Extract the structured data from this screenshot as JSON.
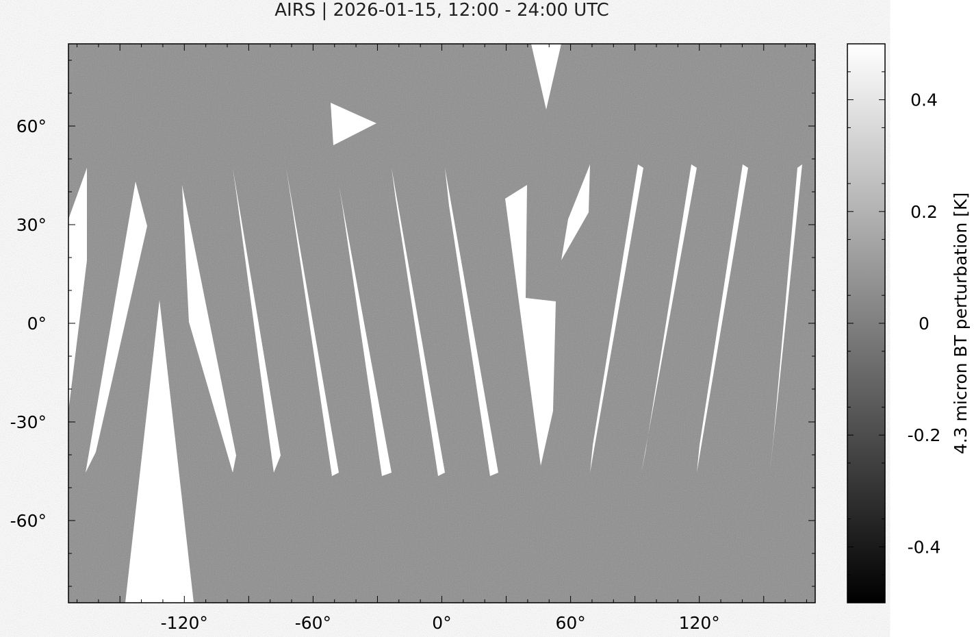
{
  "title": "AIRS | 2026-01-15, 12:00 - 24:00 UTC",
  "map": {
    "x_range": [
      -174,
      174
    ],
    "y_range": [
      -85,
      85
    ],
    "x_ticks": [
      {
        "v": -120,
        "label": "-120°"
      },
      {
        "v": -60,
        "label": "-60°"
      },
      {
        "v": 0,
        "label": "0°"
      },
      {
        "v": 60,
        "label": "60°"
      },
      {
        "v": 120,
        "label": "120°"
      }
    ],
    "y_ticks": [
      {
        "v": 60,
        "label": "60°"
      },
      {
        "v": 30,
        "label": "30°"
      },
      {
        "v": 0,
        "label": "0°"
      },
      {
        "v": -30,
        "label": "-30°"
      },
      {
        "v": -60,
        "label": "-60°"
      }
    ],
    "background_color": "#8c8c8c",
    "no_data_color": "#ffffff"
  },
  "colorbar": {
    "label": "4.3 micron BT perturbation [K]",
    "range": [
      -0.5,
      0.5
    ],
    "ticks": [
      {
        "v": 0.4,
        "label": "0.4"
      },
      {
        "v": 0.2,
        "label": "0.2"
      },
      {
        "v": 0,
        "label": "0"
      },
      {
        "v": -0.2,
        "label": "-0.2"
      },
      {
        "v": -0.4,
        "label": "-0.4"
      }
    ],
    "colormap": [
      "#000000",
      "#ffffff"
    ]
  }
}
